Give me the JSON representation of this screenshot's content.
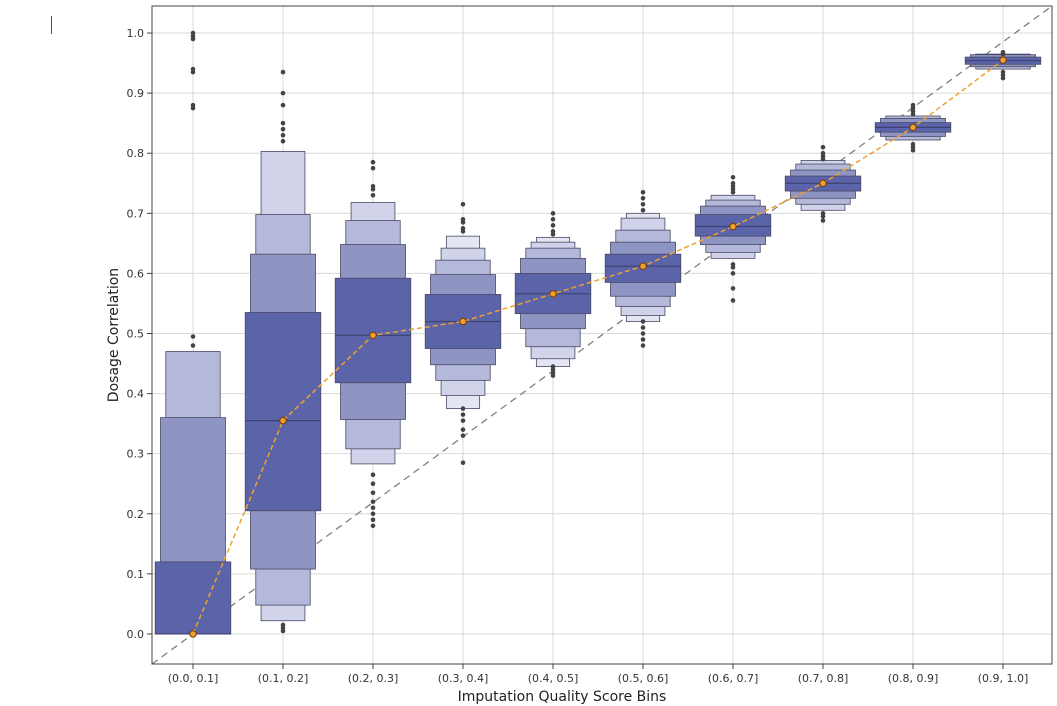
{
  "chart_data": {
    "type": "boxen",
    "title": "",
    "xlabel": "Imputation Quality Score Bins",
    "ylabel": "Dosage Correlation",
    "categories": [
      "(0.0, 0.1]",
      "(0.1, 0.2]",
      "(0.2, 0.3]",
      "(0.3, 0.4]",
      "(0.4, 0.5]",
      "(0.5, 0.6]",
      "(0.6, 0.7]",
      "(0.7, 0.8]",
      "(0.8, 0.9]",
      "(0.9, 1.0]"
    ],
    "ylim": [
      -0.05,
      1.045
    ],
    "yticks": [
      "0.0",
      "0.1",
      "0.2",
      "0.3",
      "0.4",
      "0.5",
      "0.6",
      "0.7",
      "0.8",
      "0.9",
      "1.0"
    ],
    "grid": true,
    "boxes": [
      {
        "median": 0.0,
        "levels": [
          [
            0.0,
            0.12
          ],
          [
            0.0,
            0.36
          ],
          [
            0.0,
            0.47
          ]
        ],
        "outliers": [
          0.48,
          0.495,
          0.875,
          0.88,
          0.935,
          0.94,
          0.99,
          0.995,
          1.0
        ]
      },
      {
        "median": 0.355,
        "levels": [
          [
            0.205,
            0.535
          ],
          [
            0.108,
            0.632
          ],
          [
            0.048,
            0.698
          ],
          [
            0.022,
            0.803
          ]
        ],
        "outliers": [
          0.005,
          0.01,
          0.015,
          0.82,
          0.83,
          0.84,
          0.85,
          0.88,
          0.9,
          0.935
        ]
      },
      {
        "median": 0.497,
        "levels": [
          [
            0.418,
            0.592
          ],
          [
            0.357,
            0.648
          ],
          [
            0.308,
            0.688
          ],
          [
            0.283,
            0.718
          ]
        ],
        "outliers": [
          0.18,
          0.19,
          0.2,
          0.21,
          0.22,
          0.235,
          0.25,
          0.265,
          0.73,
          0.74,
          0.745,
          0.775,
          0.785
        ]
      },
      {
        "median": 0.52,
        "levels": [
          [
            0.475,
            0.565
          ],
          [
            0.448,
            0.598
          ],
          [
            0.422,
            0.622
          ],
          [
            0.397,
            0.642
          ],
          [
            0.375,
            0.662
          ]
        ],
        "outliers": [
          0.285,
          0.33,
          0.34,
          0.355,
          0.365,
          0.375,
          0.67,
          0.675,
          0.685,
          0.69,
          0.715
        ]
      },
      {
        "median": 0.566,
        "levels": [
          [
            0.533,
            0.6
          ],
          [
            0.508,
            0.625
          ],
          [
            0.478,
            0.642
          ],
          [
            0.458,
            0.652
          ],
          [
            0.445,
            0.66
          ]
        ],
        "outliers": [
          0.43,
          0.435,
          0.44,
          0.445,
          0.665,
          0.67,
          0.68,
          0.69,
          0.7
        ]
      },
      {
        "median": 0.612,
        "levels": [
          [
            0.585,
            0.632
          ],
          [
            0.562,
            0.652
          ],
          [
            0.545,
            0.672
          ],
          [
            0.53,
            0.692
          ],
          [
            0.52,
            0.7
          ]
        ],
        "outliers": [
          0.48,
          0.49,
          0.5,
          0.51,
          0.52,
          0.705,
          0.715,
          0.725,
          0.735
        ]
      },
      {
        "median": 0.678,
        "levels": [
          [
            0.662,
            0.698
          ],
          [
            0.648,
            0.712
          ],
          [
            0.635,
            0.722
          ],
          [
            0.625,
            0.73
          ]
        ],
        "outliers": [
          0.555,
          0.575,
          0.6,
          0.61,
          0.615,
          0.735,
          0.74,
          0.745,
          0.75,
          0.76
        ]
      },
      {
        "median": 0.75,
        "levels": [
          [
            0.737,
            0.762
          ],
          [
            0.725,
            0.772
          ],
          [
            0.715,
            0.782
          ],
          [
            0.705,
            0.788
          ]
        ],
        "outliers": [
          0.688,
          0.695,
          0.7,
          0.79,
          0.795,
          0.8,
          0.81
        ]
      },
      {
        "median": 0.843,
        "levels": [
          [
            0.835,
            0.851
          ],
          [
            0.828,
            0.858
          ],
          [
            0.822,
            0.862
          ]
        ],
        "outliers": [
          0.805,
          0.81,
          0.815,
          0.865,
          0.87,
          0.875,
          0.88
        ]
      },
      {
        "median": 0.954,
        "levels": [
          [
            0.948,
            0.96
          ],
          [
            0.944,
            0.964
          ],
          [
            0.94,
            0.965
          ]
        ],
        "outliers": [
          0.925,
          0.93,
          0.935,
          0.965,
          0.968
        ]
      }
    ],
    "means": [
      0.0,
      0.355,
      0.497,
      0.52,
      0.566,
      0.612,
      0.678,
      0.75,
      0.843,
      0.955
    ],
    "colors": {
      "box_levels": [
        "#5b64a8",
        "#8f95c2",
        "#b4b8da",
        "#d0d3ea",
        "#e5e6f3"
      ],
      "mean_line": "#f0a030",
      "outlier": "#444444",
      "diagonal": "#808080",
      "grid": "#d9d9d9",
      "frame": "#444444"
    }
  }
}
